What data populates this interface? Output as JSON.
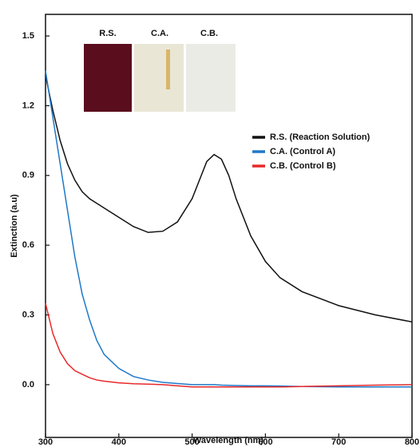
{
  "chart_data": {
    "type": "line",
    "xlabel": "Wavelength (nm)",
    "ylabel": "Extinction (a.u)",
    "x": [
      300,
      310,
      320,
      330,
      340,
      350,
      360,
      370,
      380,
      400,
      420,
      440,
      460,
      480,
      500,
      510,
      520,
      530,
      540,
      550,
      560,
      580,
      600,
      620,
      650,
      700,
      750,
      800
    ],
    "series": [
      {
        "name": "R.S. (Reaction Solution)",
        "color": "#111111",
        "values": [
          1.33,
          1.18,
          1.05,
          0.95,
          0.88,
          0.83,
          0.8,
          0.78,
          0.76,
          0.72,
          0.68,
          0.655,
          0.66,
          0.7,
          0.8,
          0.88,
          0.96,
          0.99,
          0.97,
          0.9,
          0.8,
          0.64,
          0.53,
          0.46,
          0.4,
          0.34,
          0.3,
          0.27
        ]
      },
      {
        "name": "C.A. (Control A)",
        "color": "#1f78c8",
        "values": [
          1.35,
          1.15,
          0.95,
          0.75,
          0.55,
          0.39,
          0.28,
          0.19,
          0.13,
          0.07,
          0.035,
          0.02,
          0.01,
          0.005,
          0,
          0,
          0,
          0,
          -0.002,
          -0.003,
          -0.004,
          -0.005,
          -0.005,
          -0.006,
          -0.008,
          -0.01,
          -0.01,
          -0.01
        ]
      },
      {
        "name": "C.B. (Control B)",
        "color": "#e8282a",
        "values": [
          0.35,
          0.22,
          0.14,
          0.09,
          0.06,
          0.045,
          0.03,
          0.02,
          0.015,
          0.008,
          0.004,
          0.002,
          0,
          -0.005,
          -0.01,
          -0.01,
          -0.01,
          -0.01,
          -0.01,
          -0.01,
          -0.01,
          -0.01,
          -0.01,
          -0.01,
          -0.008,
          -0.005,
          -0.002,
          0
        ]
      }
    ],
    "xlim": [
      300,
      800
    ],
    "ylim": [
      -0.227,
      1.593
    ],
    "xticks": [
      300,
      400,
      500,
      600,
      700,
      800
    ],
    "yticks": [
      {
        "value": 0,
        "label": "0.0"
      },
      0.3,
      0.6,
      0.9,
      1.2,
      1.5
    ],
    "legend": "right",
    "inset_labels": [
      "R.S.",
      "C.A.",
      "C.B."
    ]
  }
}
